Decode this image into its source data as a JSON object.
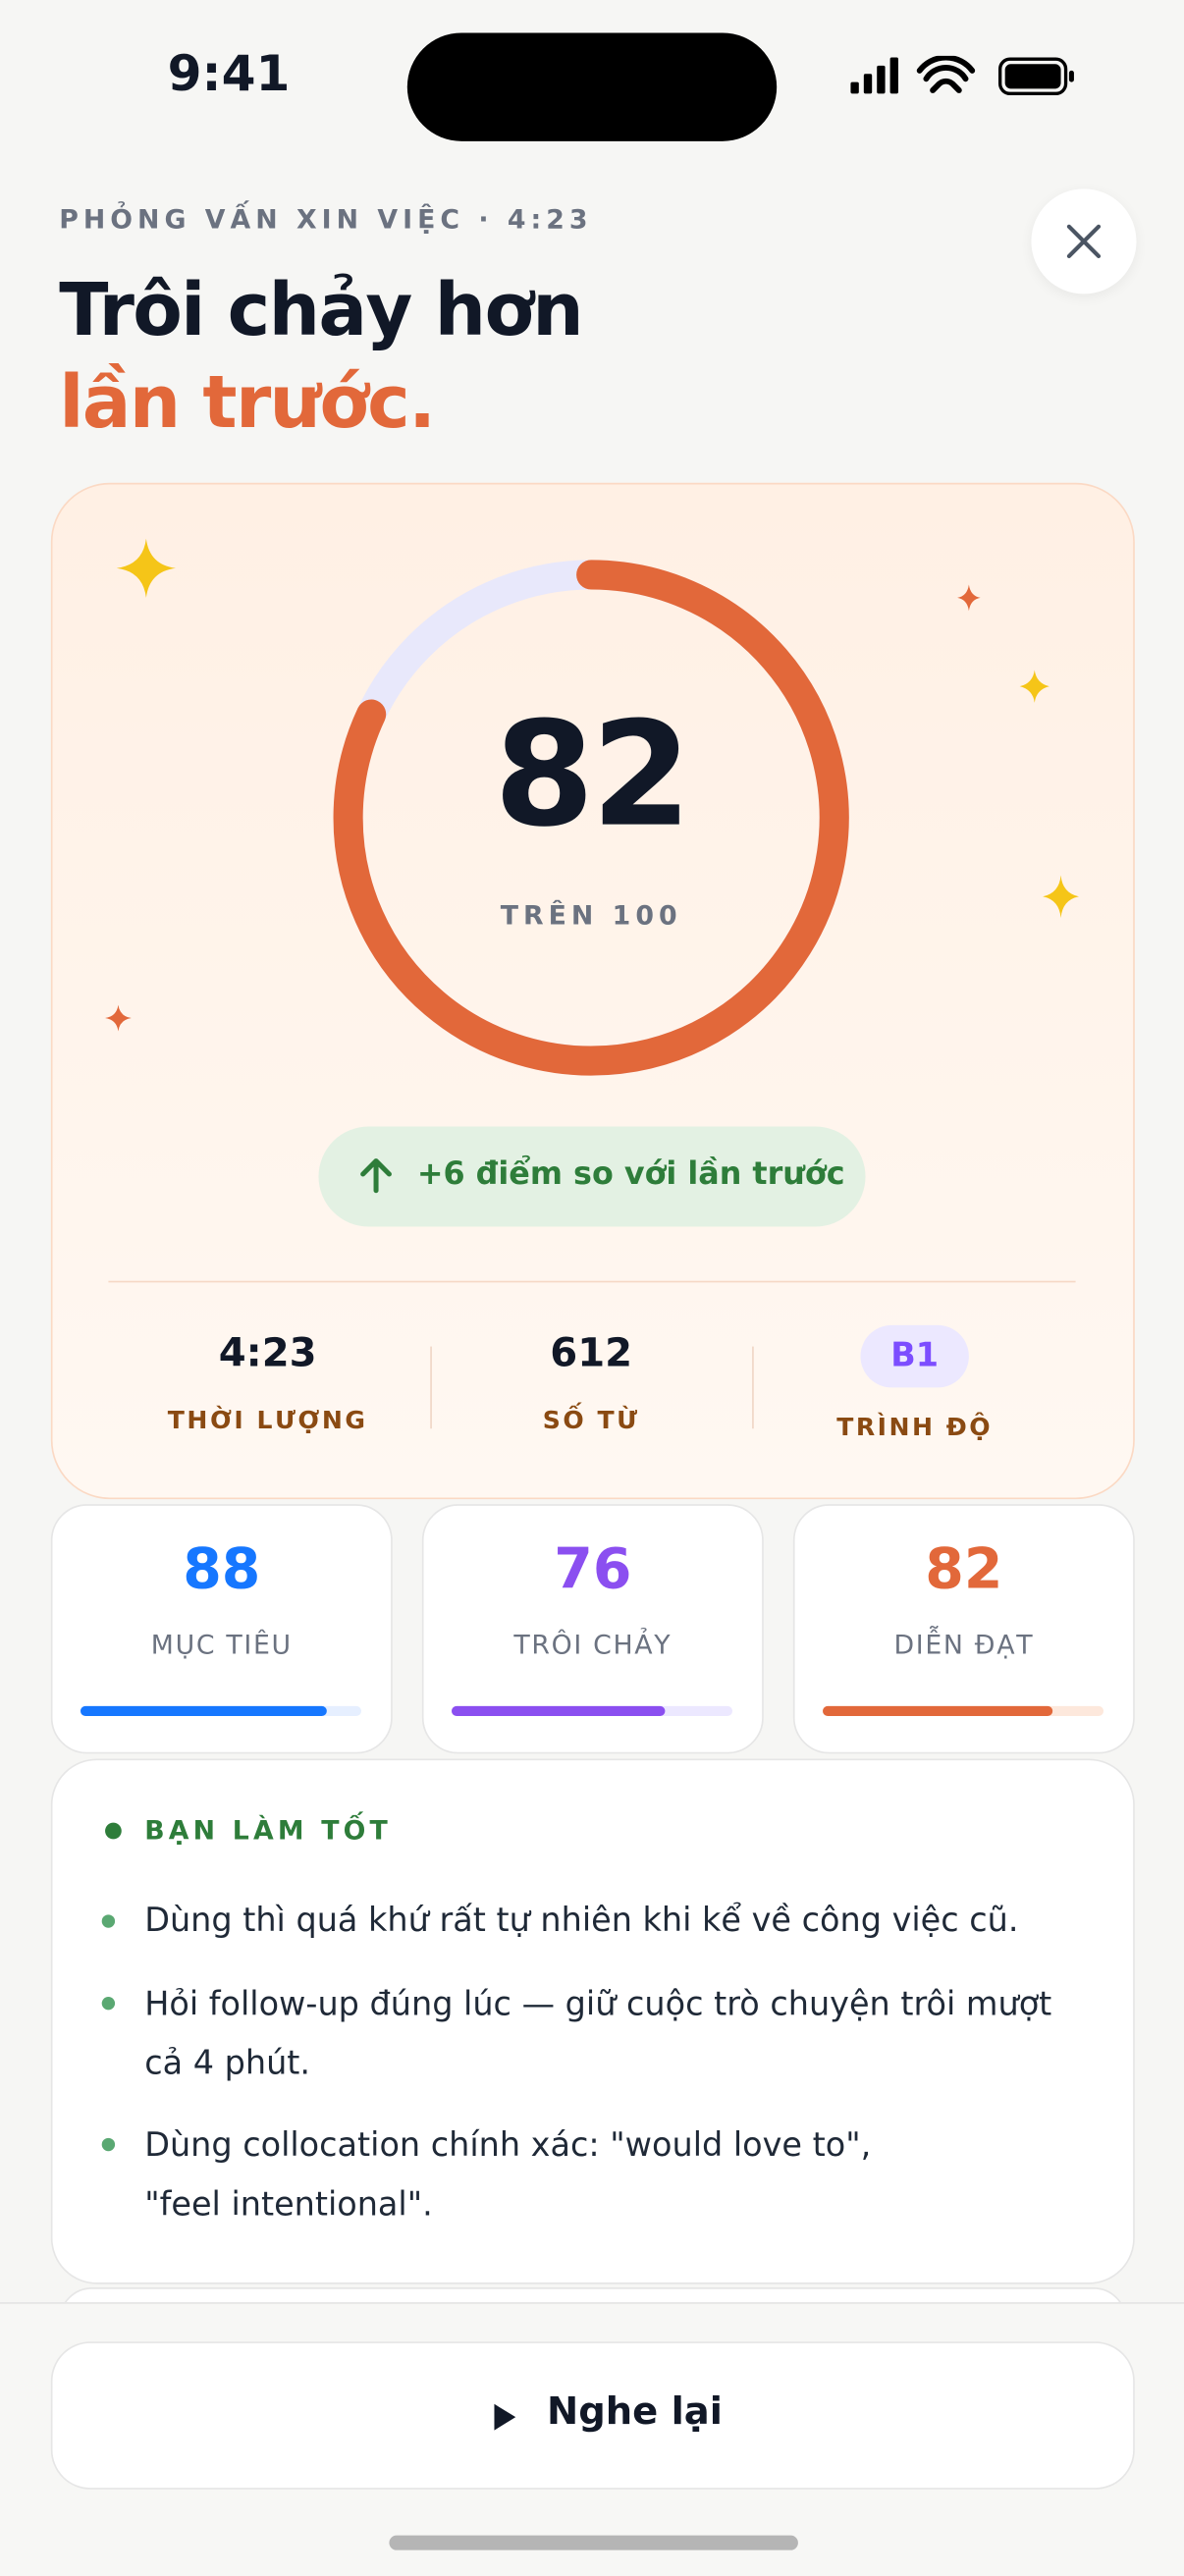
{
  "status_bar": {
    "time": "9:41"
  },
  "header": {
    "eyebrow": "PHỎNG VẤN XIN VIỆC · 4:23",
    "title_line1": "Trôi chảy hơn",
    "title_line2": "lần trước."
  },
  "score": {
    "value": 82,
    "caption": "TRÊN",
    "max": 100,
    "delta": "+6 điểm so với lần trước"
  },
  "stats": [
    {
      "value": "4:23",
      "label": "THỜI LƯỢNG"
    },
    {
      "value": 612,
      "label": "SỐ TỪ"
    },
    {
      "value": "B1",
      "label": "TRÌNH ĐỘ"
    }
  ],
  "metrics": [
    {
      "value": 88,
      "label": "MỤC TIÊU",
      "color": "#1677ff",
      "track": "#e6efff"
    },
    {
      "value": 76,
      "label": "TRÔI CHẢY",
      "color": "#8b4ff0",
      "track": "#ece8ff"
    },
    {
      "value": 82,
      "label": "DIỄN ĐẠT",
      "color": "#e2683a",
      "track": "#fde8dc"
    }
  ],
  "feedback": {
    "heading": "BẠN LÀM TỐT",
    "items": [
      "Dùng thì quá khứ rất tự nhiên khi kể về công việc cũ.",
      "Hỏi follow-up đúng lúc — giữ cuộc trò chuyện trôi mượt cả 4 phút.",
      "Dùng collocation chính xác: \"would love to\", \"feel intentional\"."
    ]
  },
  "button": {
    "label": "Nghe lại"
  }
}
